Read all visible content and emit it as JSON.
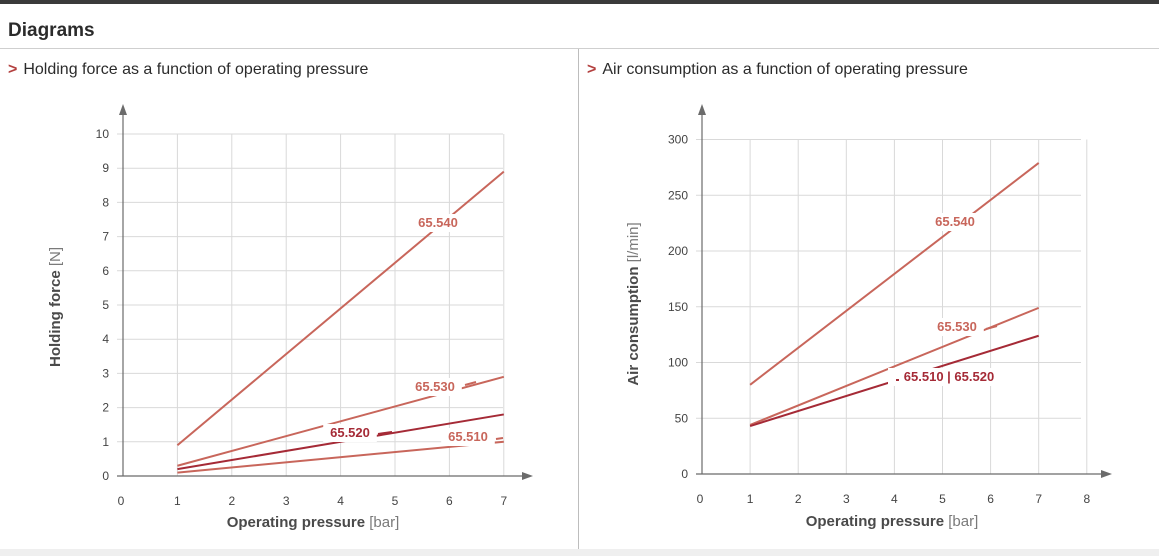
{
  "header": {
    "title": "Diagrams"
  },
  "charts": {
    "left": {
      "marker": ">",
      "title": "Holding force as a function of operating pressure"
    },
    "right": {
      "marker": ">",
      "title": "Air consumption as a function of operating pressure"
    }
  },
  "colors": {
    "light_line": "#c8665b",
    "dark_line": "#a52a36",
    "grid": "#d9d9d9",
    "accent": "#b3403f"
  },
  "chart_data": [
    {
      "type": "line",
      "title": "Holding force as a function of operating pressure",
      "xlabel": "Operating pressure",
      "xunit": "[bar]",
      "ylabel": "Holding force",
      "yunit": "[N]",
      "xlim": [
        0,
        7
      ],
      "ylim": [
        0,
        10
      ],
      "xticks": [
        "0",
        "1",
        "2",
        "3",
        "4",
        "5",
        "6",
        "7"
      ],
      "yticks": [
        "0",
        "1",
        "2",
        "3",
        "4",
        "5",
        "6",
        "7",
        "8",
        "9",
        "10"
      ],
      "grid": true,
      "series": [
        {
          "name": "65.540",
          "style": "light",
          "x": [
            1,
            7
          ],
          "y": [
            0.9,
            8.9
          ]
        },
        {
          "name": "65.530",
          "style": "light",
          "x": [
            1,
            7
          ],
          "y": [
            0.3,
            2.9
          ]
        },
        {
          "name": "65.520",
          "style": "dark",
          "x": [
            1,
            7
          ],
          "y": [
            0.2,
            1.8
          ]
        },
        {
          "name": "65.510",
          "style": "light",
          "x": [
            1,
            7
          ],
          "y": [
            0.1,
            1.0
          ]
        }
      ]
    },
    {
      "type": "line",
      "title": "Air consumption as a function of operating pressure",
      "xlabel": "Operating pressure",
      "xunit": "[bar]",
      "ylabel": "Air consumption",
      "yunit": "[l/min]",
      "xlim": [
        0,
        8
      ],
      "ylim": [
        0,
        300
      ],
      "xticks": [
        "0",
        "1",
        "2",
        "3",
        "4",
        "5",
        "6",
        "7",
        "8"
      ],
      "yticks": [
        "0",
        "50",
        "100",
        "150",
        "200",
        "250",
        "300"
      ],
      "grid": true,
      "series": [
        {
          "name": "65.540",
          "style": "light",
          "x": [
            1,
            7
          ],
          "y": [
            80,
            279
          ]
        },
        {
          "name": "65.530",
          "style": "light",
          "x": [
            1,
            7
          ],
          "y": [
            44,
            149
          ]
        },
        {
          "name": "65.510 | 65.520",
          "style": "dark",
          "x": [
            1,
            7
          ],
          "y": [
            43,
            124
          ]
        }
      ]
    }
  ]
}
